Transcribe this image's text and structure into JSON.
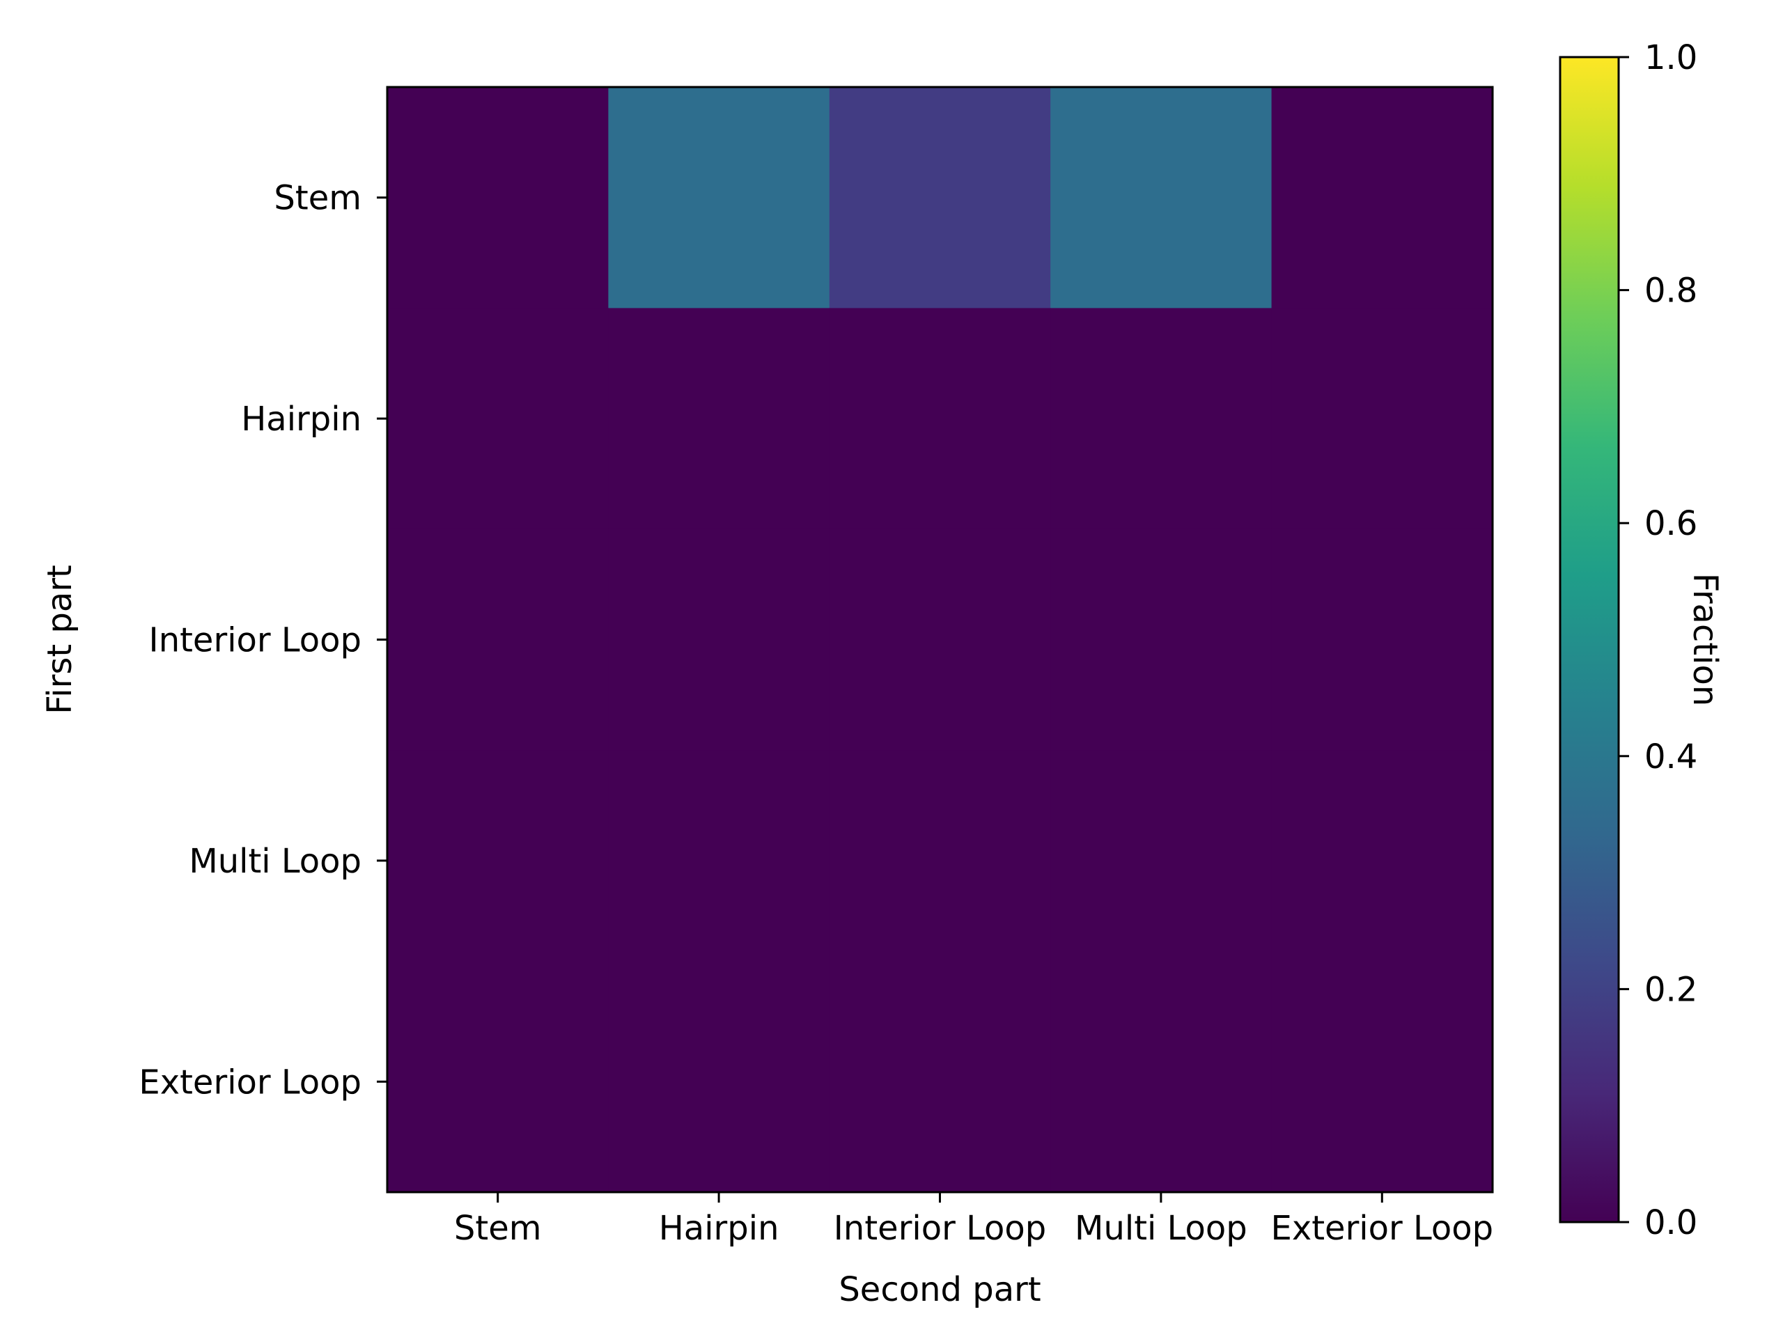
{
  "chart_data": {
    "type": "heatmap",
    "title": "",
    "xlabel": "Second part",
    "ylabel": "First part",
    "x_categories": [
      "Stem",
      "Hairpin",
      "Interior Loop",
      "Multi Loop",
      "Exterior Loop"
    ],
    "y_categories": [
      "Stem",
      "Hairpin",
      "Interior Loop",
      "Multi Loop",
      "Exterior Loop"
    ],
    "values": [
      [
        0.0,
        0.36,
        0.18,
        0.36,
        0.0
      ],
      [
        0.0,
        0.0,
        0.0,
        0.0,
        0.0
      ],
      [
        0.0,
        0.0,
        0.0,
        0.0,
        0.0
      ],
      [
        0.0,
        0.0,
        0.0,
        0.0,
        0.0
      ],
      [
        0.0,
        0.0,
        0.0,
        0.0,
        0.0
      ]
    ],
    "colormap": "viridis",
    "colormap_stops": [
      "#440154",
      "#482878",
      "#3e4989",
      "#31688e",
      "#26828e",
      "#1f9e89",
      "#35b779",
      "#6ece58",
      "#b5de2b",
      "#fde725"
    ],
    "colorbar": {
      "label": "Fraction",
      "range": [
        0.0,
        1.0
      ],
      "ticks": [
        "0.0",
        "0.2",
        "0.4",
        "0.6",
        "0.8",
        "1.0"
      ]
    },
    "grid": false
  }
}
